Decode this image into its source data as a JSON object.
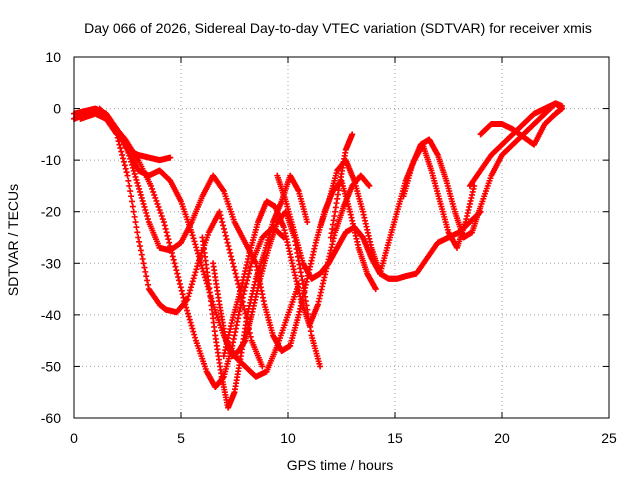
{
  "chart_data": {
    "type": "scatter",
    "title": "Day 066 of 2026, Sidereal Day-to-day VTEC variation (SDTVAR) for receiver xmis",
    "xlabel": "GPS time / hours",
    "ylabel": "SDTVAR / TECUs",
    "xlim": [
      0,
      25
    ],
    "ylim": [
      -60,
      10
    ],
    "xticks": [
      0,
      5,
      10,
      15,
      20,
      25
    ],
    "yticks": [
      -60,
      -50,
      -40,
      -30,
      -20,
      -10,
      0,
      10
    ],
    "grid": true,
    "marker": "+",
    "color": "#ff0000",
    "series": [
      {
        "name": "arc-1",
        "x": [
          0.0,
          0.5,
          1.0,
          1.5,
          2.0,
          2.5,
          3.0,
          3.5,
          4.0,
          4.5,
          5.0,
          5.5,
          6.0,
          6.5,
          7.0,
          7.5,
          8.0,
          8.5
        ],
        "y": [
          -1,
          -0.5,
          0,
          -1,
          -4,
          -8,
          -15,
          -22,
          -27,
          -27.5,
          -26,
          -22,
          -17,
          -13,
          -16,
          -22,
          -26,
          -30
        ]
      },
      {
        "name": "arc-2",
        "x": [
          0.3,
          1.0,
          1.5,
          2.0,
          2.5,
          3.0,
          3.5,
          4.0,
          4.3,
          4.8,
          5.3,
          5.8,
          6.3,
          6.8,
          7.3,
          7.8,
          8.3,
          8.8
        ],
        "y": [
          -2,
          -1,
          -2,
          -5,
          -13,
          -25,
          -35,
          -38,
          -39,
          -39.5,
          -37,
          -30,
          -24,
          -20,
          -28,
          -36,
          -45,
          -50
        ]
      },
      {
        "name": "arc-3",
        "x": [
          1.2,
          1.8,
          2.4,
          3.0,
          3.6,
          4.2,
          4.7,
          5.2,
          5.7,
          6.2,
          6.6,
          7.0,
          7.4,
          7.8,
          8.3,
          8.8,
          9.3,
          9.8
        ],
        "y": [
          0,
          -3,
          -6,
          -10,
          -15,
          -22,
          -30,
          -38,
          -45,
          -51,
          -54,
          -52,
          -46,
          -38,
          -30,
          -25,
          -23,
          -25
        ]
      },
      {
        "name": "arc-4",
        "x": [
          1.5,
          2.0,
          2.5,
          3.0,
          3.5,
          4.0,
          4.5,
          5.0,
          5.5,
          6.0,
          6.5,
          7.0,
          7.5,
          8.0,
          8.5,
          9.0,
          9.5,
          10.0,
          10.5
        ],
        "y": [
          -1,
          -4,
          -8,
          -12,
          -13,
          -12,
          -14,
          -18,
          -24,
          -31,
          -38,
          -44,
          -48,
          -50,
          -52,
          -51,
          -46,
          -40,
          -34
        ]
      },
      {
        "name": "arc-5",
        "x": [
          2.5,
          3.0,
          3.5,
          4.0,
          4.5
        ],
        "y": [
          -8,
          -9,
          -9.5,
          -10,
          -9.5
        ]
      },
      {
        "name": "arc-6",
        "x": [
          6.0,
          6.3,
          6.6,
          6.9,
          7.2,
          7.5,
          7.8,
          8.1,
          8.5,
          8.9,
          9.3,
          9.7,
          10.1,
          10.5,
          10.9
        ],
        "y": [
          -25,
          -34,
          -44,
          -52,
          -58,
          -55,
          -48,
          -40,
          -33,
          -28,
          -22,
          -18,
          -13,
          -16,
          -22
        ]
      },
      {
        "name": "arc-7",
        "x": [
          6.5,
          6.8,
          7.1,
          7.4,
          7.7,
          8.0,
          8.3,
          8.7,
          9.1,
          9.5,
          9.9,
          10.3,
          10.7,
          11.1,
          11.5
        ],
        "y": [
          -30,
          -38,
          -45,
          -48,
          -47,
          -45,
          -40,
          -33,
          -27,
          -22,
          -20,
          -25,
          -34,
          -44,
          -50
        ]
      },
      {
        "name": "arc-8",
        "x": [
          7.0,
          7.4,
          7.8,
          8.2,
          8.6,
          9.0,
          9.4,
          9.8,
          10.2,
          10.6,
          11.0,
          11.4,
          11.8,
          12.2,
          12.6,
          13.0,
          13.4,
          13.8
        ],
        "y": [
          -48,
          -41,
          -35,
          -28,
          -22,
          -18,
          -19,
          -23,
          -30,
          -37,
          -42,
          -38,
          -31,
          -24,
          -19,
          -15,
          -13,
          -15
        ]
      },
      {
        "name": "arc-9",
        "x": [
          8.5,
          8.9,
          9.3,
          9.7,
          10.1,
          10.5,
          10.9,
          11.3,
          11.7,
          12.1,
          12.5,
          12.9,
          13.3,
          13.7,
          14.1
        ],
        "y": [
          -30,
          -38,
          -44,
          -47,
          -46,
          -40,
          -33,
          -26,
          -20,
          -16,
          -14,
          -20,
          -27,
          -32,
          -35
        ]
      },
      {
        "name": "arc-10",
        "x": [
          9.5,
          9.9,
          10.3,
          10.7,
          11.1,
          11.5,
          11.9,
          12.3,
          12.7,
          13.1,
          13.5,
          13.9,
          14.3,
          14.7,
          15.1,
          15.5,
          16.0,
          16.5,
          17.0,
          17.5,
          18.0,
          18.5,
          19.0
        ],
        "y": [
          -13,
          -18,
          -24,
          -30,
          -33,
          -32,
          -30,
          -27,
          -24,
          -23,
          -25,
          -29,
          -32,
          -33,
          -33,
          -32.5,
          -32,
          -29,
          -26,
          -25,
          -24,
          -22,
          -20
        ]
      },
      {
        "name": "arc-11",
        "x": [
          11.5,
          11.9,
          12.3,
          12.7,
          13.1,
          13.5,
          13.9,
          14.3,
          14.7,
          15.1,
          15.5,
          15.9,
          16.3,
          16.7,
          17.1,
          17.5,
          17.9,
          18.3,
          18.7
        ],
        "y": [
          -23,
          -18,
          -12,
          -10,
          -14,
          -20,
          -27,
          -32,
          -26,
          -20,
          -14,
          -10,
          -7,
          -12,
          -18,
          -24,
          -27,
          -22,
          -15
        ]
      },
      {
        "name": "arc-12",
        "x": [
          12.0,
          12.4,
          12.7,
          13.0
        ],
        "y": [
          -25,
          -15,
          -8,
          -5
        ]
      },
      {
        "name": "arc-13",
        "x": [
          15.4,
          15.8,
          16.2,
          16.6,
          17.0,
          17.4,
          17.8,
          18.2,
          18.6,
          19.0,
          19.5,
          20.0,
          20.5,
          21.0,
          21.5,
          22.0,
          22.5,
          22.8
        ],
        "y": [
          -17,
          -11,
          -7,
          -6,
          -9,
          -14,
          -20,
          -25,
          -24,
          -19,
          -13,
          -9,
          -7,
          -5,
          -3,
          -1,
          1,
          0
        ]
      },
      {
        "name": "arc-14",
        "x": [
          18.5,
          19.0,
          19.5,
          20.0,
          20.5,
          21.0,
          21.5,
          22.0,
          22.5,
          22.8
        ],
        "y": [
          -15,
          -12,
          -9,
          -7,
          -5,
          -3,
          -1,
          0,
          1,
          0.5
        ]
      },
      {
        "name": "arc-15",
        "x": [
          19.0,
          19.5,
          20.0,
          20.5,
          21.0,
          21.5,
          22.0,
          22.5,
          22.8
        ],
        "y": [
          -5,
          -3,
          -3,
          -4,
          -5.5,
          -7,
          -3,
          -1,
          0
        ]
      },
      {
        "name": "arc-16",
        "x": [
          0.0,
          0.3,
          0.6,
          0.9
        ],
        "y": [
          -2,
          -1.5,
          -1,
          -0.5
        ]
      }
    ]
  }
}
